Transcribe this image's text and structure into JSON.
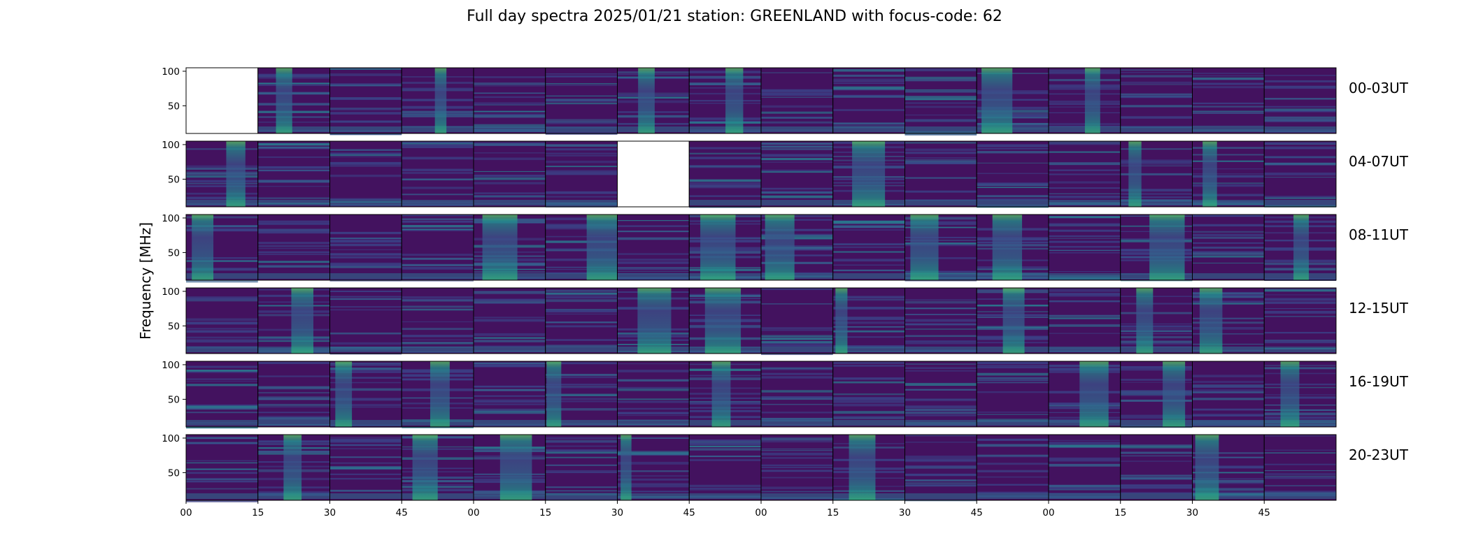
{
  "chart_data": {
    "type": "heatmap",
    "title": "Full day spectra 2025/01/21 station: GREENLAND with focus-code: 62",
    "ylabel": "Frequency [MHz]",
    "yticks": [
      "100",
      "50"
    ],
    "xticks": [
      "00",
      "15",
      "30",
      "45",
      "00",
      "15",
      "30",
      "45",
      "00",
      "15",
      "30",
      "45",
      "00",
      "15",
      "30",
      "45"
    ],
    "row_labels": [
      "00-03UT",
      "04-07UT",
      "08-11UT",
      "12-15UT",
      "16-19UT",
      "20-23UT"
    ],
    "ylim": [
      10,
      105
    ],
    "colormap": [
      "#440154",
      "#3b528b",
      "#21918c",
      "#5ec962",
      "#fde725"
    ],
    "missing_panels": [
      [
        0,
        0
      ],
      [
        1,
        6
      ]
    ],
    "panels_per_row": 16,
    "minutes_per_panel": 15
  }
}
